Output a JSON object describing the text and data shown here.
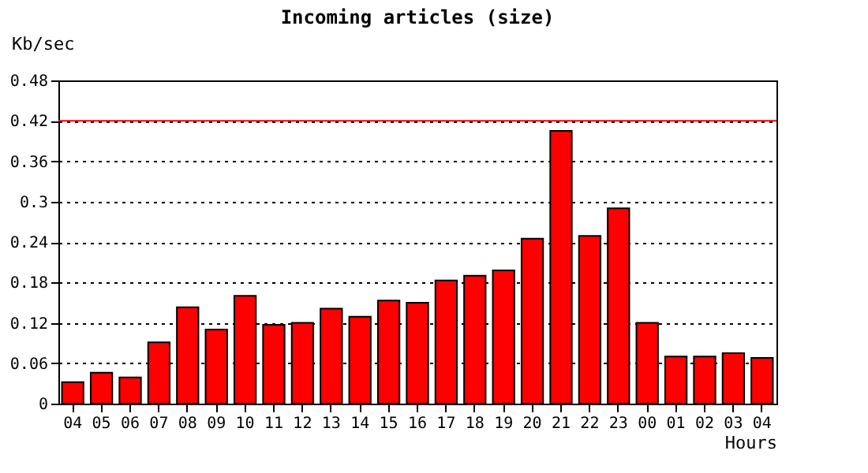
{
  "chart_data": {
    "type": "bar",
    "title": "Incoming articles (size)",
    "xlabel": "Hours",
    "ylabel": "Kb/sec",
    "categories": [
      "04",
      "05",
      "06",
      "07",
      "08",
      "09",
      "10",
      "11",
      "12",
      "13",
      "14",
      "15",
      "16",
      "17",
      "18",
      "19",
      "20",
      "21",
      "22",
      "23",
      "00",
      "01",
      "02",
      "03",
      "04"
    ],
    "values": [
      0.032,
      0.046,
      0.039,
      0.091,
      0.143,
      0.11,
      0.16,
      0.117,
      0.12,
      0.141,
      0.129,
      0.153,
      0.15,
      0.183,
      0.19,
      0.198,
      0.245,
      0.405,
      0.249,
      0.29,
      0.12,
      0.07,
      0.07,
      0.075,
      0.068
    ],
    "color": "#ff0000",
    "ylim": [
      0,
      0.48
    ],
    "yticks": [
      0,
      0.06,
      0.12,
      0.18,
      0.24,
      0.3,
      0.36,
      0.42,
      0.48
    ],
    "grid": "y",
    "ref_lines": [
      {
        "axis": "y",
        "value": 0.42,
        "color": "#ff0000",
        "line_style": "solid"
      }
    ]
  }
}
